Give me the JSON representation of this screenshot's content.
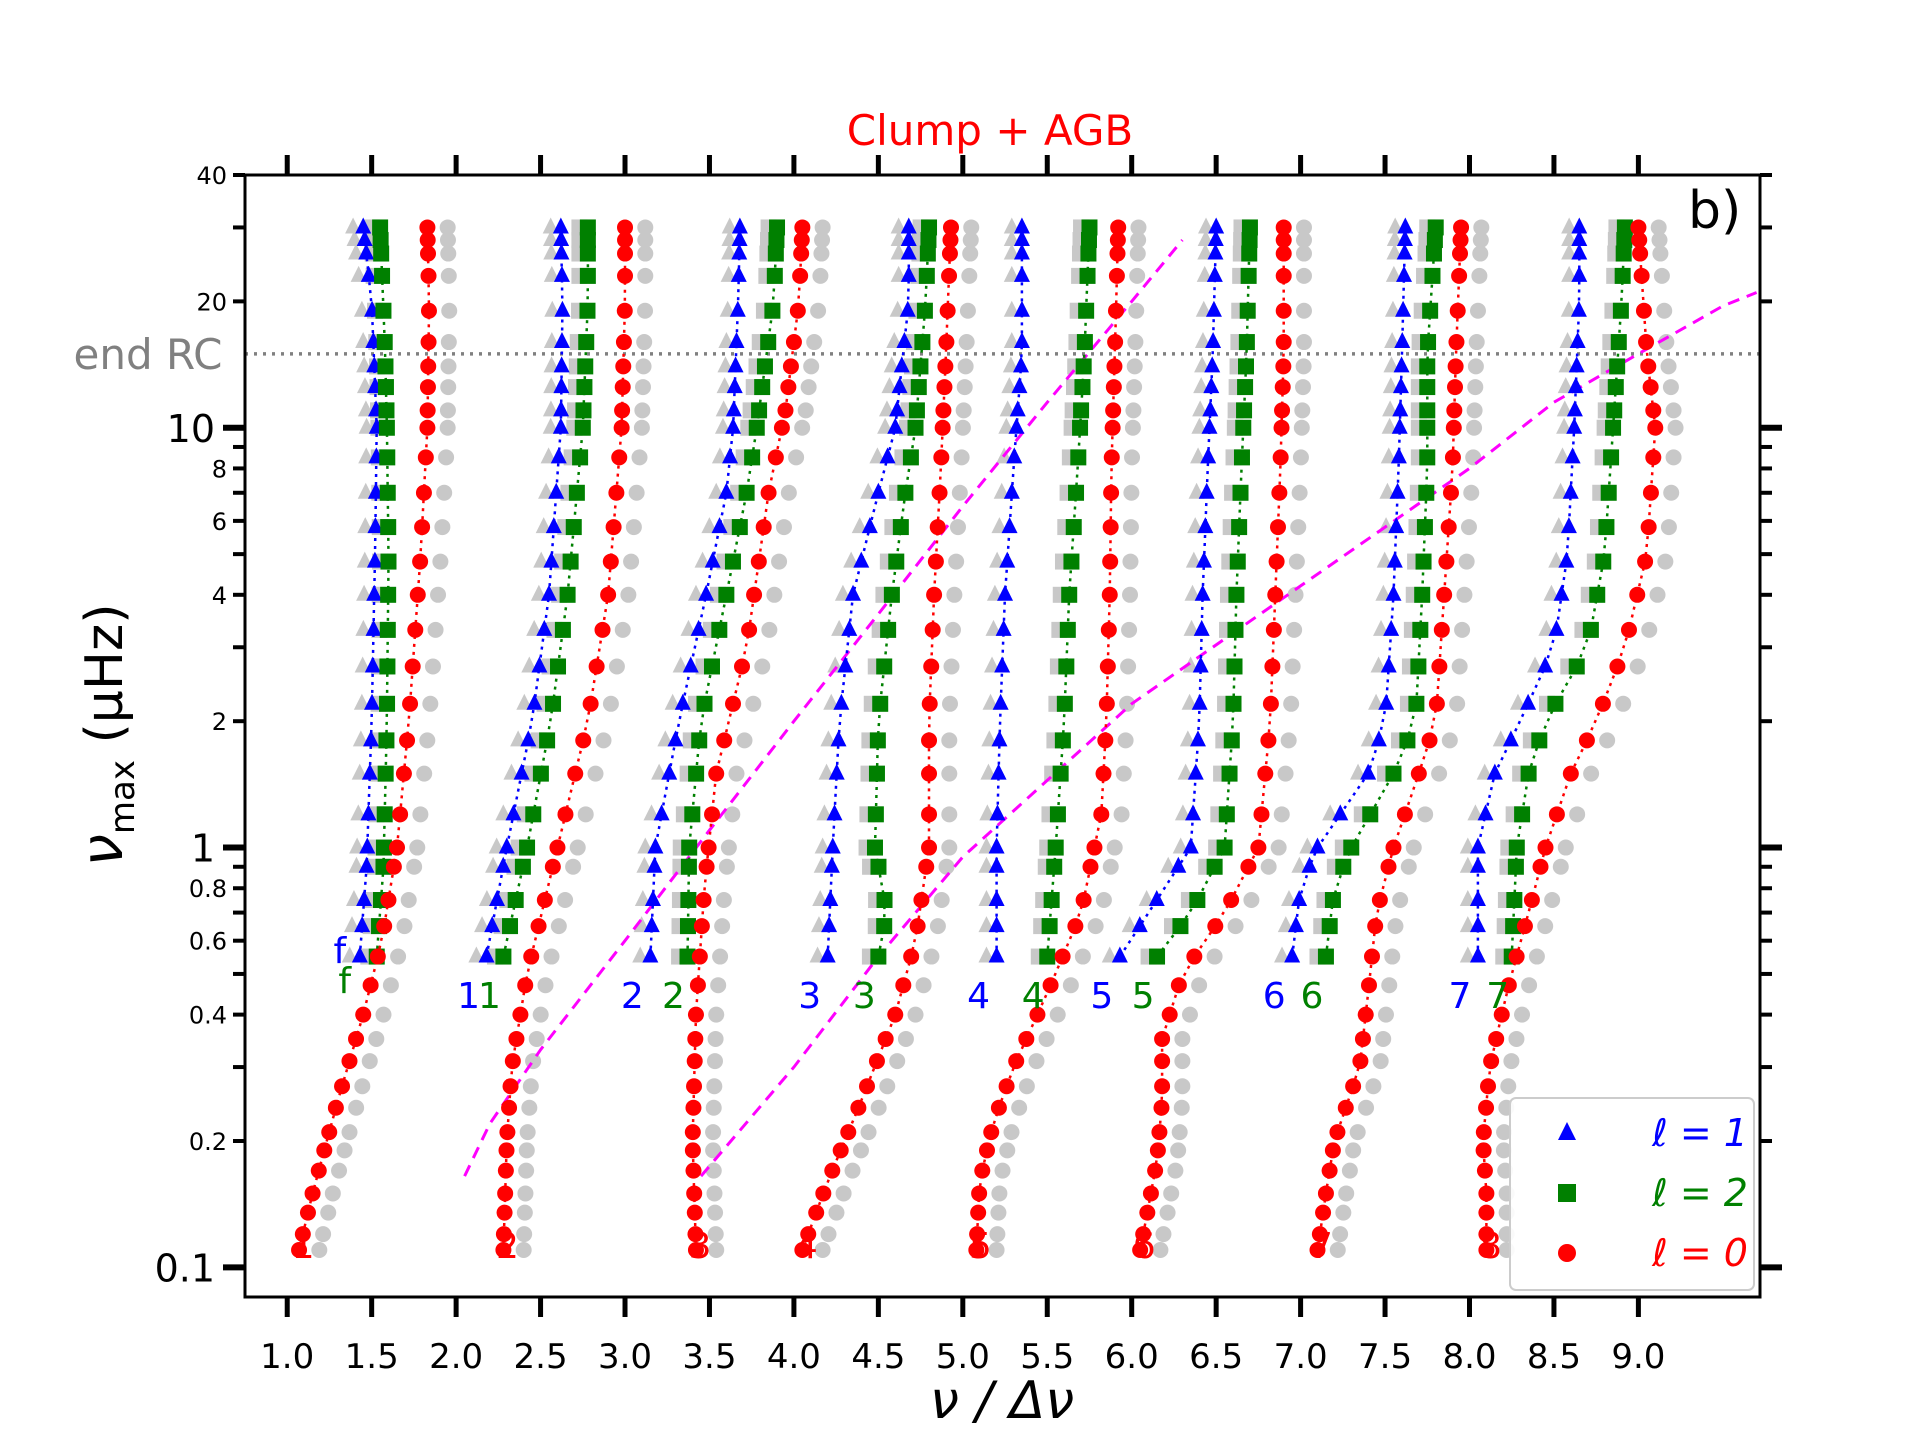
{
  "chart_data": {
    "type": "scatter",
    "title": "Clump + AGB",
    "title_color": "#ff0000",
    "panel_label": "b)",
    "xlabel": "ν / Δν",
    "ylabel": "ν",
    "ylabel_sub": "max",
    "ylabel_unit": " (μHz)",
    "xlim": [
      0.75,
      9.72
    ],
    "ylim": [
      0.085,
      40
    ],
    "y_scale": "log",
    "x_ticks": [
      1.0,
      1.5,
      2.0,
      2.5,
      3.0,
      3.5,
      4.0,
      4.5,
      5.0,
      5.5,
      6.0,
      6.5,
      7.0,
      7.5,
      8.0,
      8.5,
      9.0
    ],
    "x_tick_labels": [
      "1.0",
      "1.5",
      "2.0",
      "2.5",
      "3.0",
      "3.5",
      "4.0",
      "4.5",
      "5.0",
      "5.5",
      "6.0",
      "6.5",
      "7.0",
      "7.5",
      "8.0",
      "8.5",
      "9.0"
    ],
    "y_major_ticks": [
      {
        "value": 0.1,
        "label": "0.1"
      },
      {
        "value": 1,
        "label": "1"
      },
      {
        "value": 10,
        "label": "10"
      }
    ],
    "y_minor_ticks": [
      {
        "value": 0.2,
        "label": "0.2"
      },
      {
        "value": 0.4,
        "label": "0.4"
      },
      {
        "value": 0.6,
        "label": "0.6"
      },
      {
        "value": 0.8,
        "label": "0.8"
      },
      {
        "value": 2,
        "label": "2"
      },
      {
        "value": 4,
        "label": "4"
      },
      {
        "value": 6,
        "label": "6"
      },
      {
        "value": 8,
        "label": "8"
      },
      {
        "value": 20,
        "label": "20"
      },
      {
        "value": 40,
        "label": "40"
      }
    ],
    "y_minor_unlabeled": [
      0.3,
      0.5,
      0.7,
      0.9,
      3,
      5,
      7,
      9,
      30
    ],
    "hline": {
      "y": 15,
      "label": "end RC",
      "color": "#808080"
    },
    "legend": {
      "position": "lower-right",
      "entries": [
        {
          "label": "ℓ = 1",
          "color": "#0000ff",
          "marker": "triangle"
        },
        {
          "label": "ℓ = 2",
          "color": "#008000",
          "marker": "square"
        },
        {
          "label": "ℓ = 0",
          "color": "#ff0000",
          "marker": "circle"
        }
      ]
    },
    "colors": {
      "l0": "#ff0000",
      "l1": "#0000ff",
      "l2": "#008000",
      "grey": "#c8c8c8",
      "dashed": "#ff00ff"
    },
    "nu_max_grid": [
      0.55,
      0.65,
      0.75,
      0.9,
      1.0,
      1.2,
      1.5,
      1.8,
      2.2,
      2.7,
      3.3,
      4.0,
      4.8,
      5.8,
      7.0,
      8.5,
      10.0,
      11.0,
      12.5,
      14.0,
      16.0,
      19.0,
      23.0,
      26.0,
      28.0,
      30.0
    ],
    "nu_max_grid_l0": [
      0.11,
      0.12,
      0.135,
      0.15,
      0.17,
      0.19,
      0.21,
      0.24,
      0.27,
      0.31,
      0.35,
      0.4,
      0.47,
      0.55,
      0.65,
      0.75,
      0.9,
      1.0,
      1.2,
      1.5,
      1.8,
      2.2,
      2.7,
      3.3,
      4.0,
      4.8,
      5.8,
      7.0,
      8.5,
      10.0,
      11.0,
      12.5,
      14.0,
      16.0,
      19.0,
      23.0,
      26.0,
      28.0,
      30.0
    ],
    "modes": [
      {
        "n": 1,
        "l0_label": "1",
        "l1_label": "f",
        "l2_label": "f",
        "l1": [
          [
            0.55,
            1.43
          ],
          [
            0.9,
            1.47
          ],
          [
            2.0,
            1.5
          ],
          [
            5.0,
            1.52
          ],
          [
            10.0,
            1.53
          ],
          [
            20.0,
            1.5
          ],
          [
            30.0,
            1.45
          ]
        ],
        "l2": [
          [
            0.55,
            1.53
          ],
          [
            0.9,
            1.57
          ],
          [
            2.0,
            1.59
          ],
          [
            5.0,
            1.6
          ],
          [
            10.0,
            1.59
          ],
          [
            15.0,
            1.58
          ],
          [
            30.0,
            1.55
          ]
        ],
        "l0": [
          [
            0.11,
            1.07
          ],
          [
            0.15,
            1.15
          ],
          [
            0.25,
            1.3
          ],
          [
            0.4,
            1.45
          ],
          [
            0.6,
            1.56
          ],
          [
            1.0,
            1.65
          ],
          [
            2.0,
            1.72
          ],
          [
            5.0,
            1.79
          ],
          [
            10.0,
            1.83
          ],
          [
            20.0,
            1.84
          ],
          [
            30.0,
            1.83
          ]
        ]
      },
      {
        "n": 2,
        "l0_label": "2",
        "l1_label": "1",
        "l2_label": "1",
        "l1": [
          [
            0.55,
            2.18
          ],
          [
            1.0,
            2.3
          ],
          [
            2.0,
            2.45
          ],
          [
            4.0,
            2.55
          ],
          [
            10.0,
            2.62
          ],
          [
            20.0,
            2.63
          ],
          [
            30.0,
            2.62
          ]
        ],
        "l2": [
          [
            0.55,
            2.28
          ],
          [
            1.0,
            2.42
          ],
          [
            2.0,
            2.56
          ],
          [
            4.0,
            2.66
          ],
          [
            10.0,
            2.75
          ],
          [
            20.0,
            2.78
          ],
          [
            30.0,
            2.78
          ]
        ],
        "l0": [
          [
            0.11,
            2.28
          ],
          [
            0.2,
            2.3
          ],
          [
            0.3,
            2.33
          ],
          [
            0.5,
            2.42
          ],
          [
            1.0,
            2.6
          ],
          [
            2.0,
            2.78
          ],
          [
            4.0,
            2.9
          ],
          [
            10.0,
            2.98
          ],
          [
            20.0,
            3.0
          ],
          [
            30.0,
            3.0
          ]
        ]
      },
      {
        "n": 3,
        "l0_label": "3",
        "l1_label": "2",
        "l2_label": "2",
        "l1": [
          [
            0.55,
            3.15
          ],
          [
            1.0,
            3.18
          ],
          [
            2.0,
            3.32
          ],
          [
            4.0,
            3.48
          ],
          [
            7.0,
            3.6
          ],
          [
            10.0,
            3.64
          ],
          [
            20.0,
            3.67
          ],
          [
            30.0,
            3.68
          ]
        ],
        "l2": [
          [
            0.55,
            3.37
          ],
          [
            1.0,
            3.38
          ],
          [
            2.0,
            3.45
          ],
          [
            4.0,
            3.6
          ],
          [
            7.0,
            3.72
          ],
          [
            10.0,
            3.78
          ],
          [
            20.0,
            3.88
          ],
          [
            30.0,
            3.9
          ]
        ],
        "l0": [
          [
            0.11,
            3.42
          ],
          [
            0.2,
            3.4
          ],
          [
            0.4,
            3.42
          ],
          [
            0.8,
            3.47
          ],
          [
            1.5,
            3.54
          ],
          [
            3.0,
            3.72
          ],
          [
            7.0,
            3.85
          ],
          [
            11.0,
            3.95
          ],
          [
            20.0,
            4.03
          ],
          [
            30.0,
            4.05
          ]
        ]
      },
      {
        "n": 4,
        "l0_label": "4",
        "l1_label": "3",
        "l2_label": "3",
        "l1": [
          [
            0.55,
            4.2
          ],
          [
            1.0,
            4.23
          ],
          [
            2.0,
            4.27
          ],
          [
            4.0,
            4.35
          ],
          [
            7.0,
            4.5
          ],
          [
            10.0,
            4.6
          ],
          [
            20.0,
            4.68
          ],
          [
            30.0,
            4.68
          ]
        ],
        "l2": [
          [
            0.55,
            4.5
          ],
          [
            0.7,
            4.55
          ],
          [
            1.0,
            4.48
          ],
          [
            2.0,
            4.5
          ],
          [
            4.0,
            4.58
          ],
          [
            7.0,
            4.66
          ],
          [
            10.0,
            4.72
          ],
          [
            20.0,
            4.78
          ],
          [
            30.0,
            4.8
          ]
        ],
        "l0": [
          [
            0.11,
            4.05
          ],
          [
            0.16,
            4.2
          ],
          [
            0.25,
            4.4
          ],
          [
            0.4,
            4.6
          ],
          [
            0.6,
            4.72
          ],
          [
            1.0,
            4.8
          ],
          [
            2.0,
            4.8
          ],
          [
            4.0,
            4.83
          ],
          [
            8.0,
            4.87
          ],
          [
            15.0,
            4.9
          ],
          [
            30.0,
            4.93
          ]
        ]
      },
      {
        "n": 5,
        "l0_label": "5",
        "l1_label": "4",
        "l2_label": "4",
        "l1": [
          [
            0.55,
            5.2
          ],
          [
            1.0,
            5.2
          ],
          [
            2.0,
            5.22
          ],
          [
            4.0,
            5.25
          ],
          [
            8.0,
            5.3
          ],
          [
            15.0,
            5.35
          ],
          [
            30.0,
            5.35
          ]
        ],
        "l2": [
          [
            0.55,
            5.5
          ],
          [
            1.0,
            5.55
          ],
          [
            2.0,
            5.6
          ],
          [
            4.0,
            5.63
          ],
          [
            8.0,
            5.68
          ],
          [
            15.0,
            5.72
          ],
          [
            30.0,
            5.75
          ]
        ],
        "l0": [
          [
            0.11,
            5.08
          ],
          [
            0.16,
            5.1
          ],
          [
            0.22,
            5.18
          ],
          [
            0.3,
            5.3
          ],
          [
            0.45,
            5.5
          ],
          [
            0.7,
            5.7
          ],
          [
            1.2,
            5.82
          ],
          [
            2.0,
            5.85
          ],
          [
            4.0,
            5.87
          ],
          [
            8.0,
            5.88
          ],
          [
            15.0,
            5.9
          ],
          [
            30.0,
            5.92
          ]
        ]
      },
      {
        "n": 6,
        "l0_label": "6",
        "l1_label": "5",
        "l2_label": "5",
        "l1": [
          [
            0.55,
            5.93
          ],
          [
            0.7,
            6.1
          ],
          [
            1.0,
            6.35
          ],
          [
            2.0,
            6.4
          ],
          [
            4.0,
            6.42
          ],
          [
            8.0,
            6.45
          ],
          [
            15.0,
            6.48
          ],
          [
            30.0,
            6.5
          ]
        ],
        "l2": [
          [
            0.55,
            6.15
          ],
          [
            0.7,
            6.35
          ],
          [
            1.0,
            6.55
          ],
          [
            2.0,
            6.6
          ],
          [
            4.0,
            6.62
          ],
          [
            8.0,
            6.65
          ],
          [
            15.0,
            6.68
          ],
          [
            30.0,
            6.7
          ]
        ],
        "l0": [
          [
            0.11,
            6.05
          ],
          [
            0.14,
            6.1
          ],
          [
            0.18,
            6.15
          ],
          [
            0.25,
            6.18
          ],
          [
            0.35,
            6.18
          ],
          [
            0.5,
            6.3
          ],
          [
            0.7,
            6.55
          ],
          [
            1.0,
            6.75
          ],
          [
            2.0,
            6.82
          ],
          [
            4.0,
            6.85
          ],
          [
            8.0,
            6.88
          ],
          [
            15.0,
            6.9
          ],
          [
            30.0,
            6.9
          ]
        ]
      },
      {
        "n": 7,
        "l0_label": "7",
        "l1_label": "6",
        "l2_label": "6",
        "l1": [
          [
            0.55,
            6.95
          ],
          [
            0.8,
            7.0
          ],
          [
            1.0,
            7.1
          ],
          [
            1.5,
            7.4
          ],
          [
            2.0,
            7.5
          ],
          [
            4.0,
            7.55
          ],
          [
            8.0,
            7.58
          ],
          [
            15.0,
            7.6
          ],
          [
            30.0,
            7.62
          ]
        ],
        "l2": [
          [
            0.55,
            7.15
          ],
          [
            0.8,
            7.2
          ],
          [
            1.0,
            7.3
          ],
          [
            1.5,
            7.55
          ],
          [
            2.0,
            7.68
          ],
          [
            4.0,
            7.72
          ],
          [
            8.0,
            7.75
          ],
          [
            15.0,
            7.75
          ],
          [
            30.0,
            7.8
          ]
        ],
        "l0": [
          [
            0.11,
            7.1
          ],
          [
            0.15,
            7.15
          ],
          [
            0.2,
            7.2
          ],
          [
            0.3,
            7.35
          ],
          [
            0.45,
            7.4
          ],
          [
            0.7,
            7.45
          ],
          [
            1.0,
            7.55
          ],
          [
            1.5,
            7.7
          ],
          [
            2.0,
            7.8
          ],
          [
            4.0,
            7.85
          ],
          [
            8.0,
            7.9
          ],
          [
            15.0,
            7.92
          ],
          [
            30.0,
            7.95
          ]
        ]
      },
      {
        "n": 8,
        "l0_label": "8",
        "l1_label": "7",
        "l2_label": "7",
        "l1": [
          [
            0.55,
            8.05
          ],
          [
            1.0,
            8.05
          ],
          [
            1.5,
            8.15
          ],
          [
            2.0,
            8.3
          ],
          [
            3.0,
            8.5
          ],
          [
            5.0,
            8.58
          ],
          [
            10.0,
            8.62
          ],
          [
            20.0,
            8.65
          ],
          [
            30.0,
            8.65
          ]
        ],
        "l2": [
          [
            0.55,
            8.25
          ],
          [
            1.0,
            8.28
          ],
          [
            1.5,
            8.35
          ],
          [
            2.0,
            8.45
          ],
          [
            3.0,
            8.7
          ],
          [
            5.0,
            8.8
          ],
          [
            10.0,
            8.85
          ],
          [
            20.0,
            8.9
          ],
          [
            30.0,
            8.92
          ]
        ],
        "l0": [
          [
            0.11,
            8.1
          ],
          [
            0.15,
            8.1
          ],
          [
            0.2,
            8.08
          ],
          [
            0.3,
            8.12
          ],
          [
            0.45,
            8.22
          ],
          [
            0.7,
            8.35
          ],
          [
            1.0,
            8.45
          ],
          [
            1.5,
            8.6
          ],
          [
            2.0,
            8.75
          ],
          [
            3.0,
            8.92
          ],
          [
            5.0,
            9.05
          ],
          [
            10.0,
            9.1
          ],
          [
            15.0,
            9.05
          ],
          [
            30.0,
            9.0
          ]
        ]
      }
    ],
    "dashed_curves": [
      [
        [
          2.05,
          0.165
        ],
        [
          2.2,
          0.22
        ],
        [
          2.5,
          0.33
        ],
        [
          3.0,
          0.6
        ],
        [
          3.5,
          1.1
        ],
        [
          4.0,
          2.0
        ],
        [
          4.5,
          3.6
        ],
        [
          5.0,
          6.5
        ],
        [
          5.5,
          11.5
        ],
        [
          6.0,
          20.0
        ],
        [
          6.3,
          28.0
        ]
      ],
      [
        [
          3.45,
          0.165
        ],
        [
          4.0,
          0.3
        ],
        [
          4.5,
          0.55
        ],
        [
          5.0,
          0.95
        ],
        [
          6.0,
          2.2
        ],
        [
          7.0,
          4.2
        ],
        [
          8.0,
          8.0
        ],
        [
          8.5,
          11.5
        ],
        [
          9.0,
          15.0
        ],
        [
          9.5,
          19.5
        ],
        [
          9.7,
          21.0
        ]
      ]
    ]
  }
}
